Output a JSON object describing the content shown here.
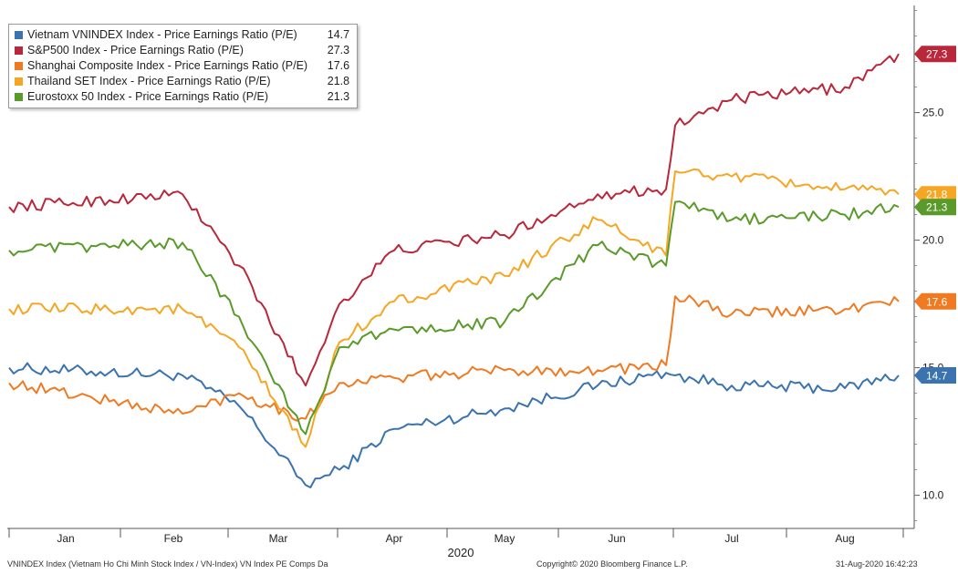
{
  "chart_data": {
    "type": "line",
    "title": "",
    "xlabel": "2020",
    "ylabel": "",
    "ylim": [
      8.7,
      29.2
    ],
    "y_ticks": [
      {
        "value": 10.0,
        "label": "10.0"
      },
      {
        "value": 15.0,
        "label": "15.0"
      },
      {
        "value": 20.0,
        "label": "20.0"
      },
      {
        "value": 25.0,
        "label": "25.0"
      }
    ],
    "x_ticks": [
      "Jan",
      "Feb",
      "Mar",
      "Apr",
      "May",
      "Jun",
      "Jul",
      "Aug"
    ],
    "x_values": [
      "Jan",
      "Feb",
      "Mar",
      "Mar",
      "Mar",
      "Apr",
      "May",
      "Jun",
      "Jun",
      "Jul",
      "Jul",
      "Aug",
      "Aug"
    ],
    "series": [
      {
        "name": "Vietnam VNINDEX Index - Price Earnings Ratio (P/E)",
        "last": "14.7",
        "last_value": 14.7,
        "color": "#3b73b0",
        "values": [
          15.0,
          14.7,
          13.5,
          10.4,
          11.0,
          12.6,
          13.4,
          14.3,
          14.8,
          14.7,
          14.3,
          14.2,
          14.7
        ]
      },
      {
        "name": "S&P500 Index - Price Earnings Ratio (P/E)",
        "last": "27.3",
        "last_value": 27.3,
        "color": "#b8283a",
        "values": [
          21.3,
          21.8,
          19.0,
          14.3,
          17.5,
          19.6,
          20.2,
          21.8,
          22.0,
          24.5,
          25.5,
          26.0,
          27.3
        ]
      },
      {
        "name": "Shanghai Composite Index - Price Earnings Ratio (P/E)",
        "last": "17.6",
        "last_value": 17.6,
        "color": "#ef7a22",
        "values": [
          14.4,
          13.2,
          14.0,
          13.0,
          14.4,
          14.6,
          14.9,
          14.9,
          15.1,
          17.8,
          17.1,
          17.3,
          17.6
        ]
      },
      {
        "name": "Thailand SET Index - Price Earnings Ratio (P/E)",
        "last": "21.8",
        "last_value": 21.8,
        "color": "#f5a623",
        "values": [
          17.3,
          17.3,
          15.8,
          11.9,
          16.0,
          17.6,
          18.6,
          20.8,
          19.4,
          22.7,
          22.5,
          22.0,
          21.8
        ]
      },
      {
        "name": "Eurostoxx 50 Index - Price Earnings Ratio (P/E)",
        "last": "21.3",
        "last_value": 21.3,
        "color": "#5a9a2a",
        "values": [
          19.6,
          19.9,
          17.0,
          12.4,
          15.8,
          16.5,
          16.8,
          19.8,
          19.0,
          21.5,
          20.8,
          21.0,
          21.3
        ]
      }
    ]
  },
  "footer": {
    "source_left": "VNINDEX Index (Vietnam Ho Chi Minh Stock Index / VN-Index) VN Index PE Comps  Da",
    "copyright": "Copyright© 2020 Bloomberg Finance L.P.",
    "timestamp": "31-Aug-2020  16:42:23"
  }
}
